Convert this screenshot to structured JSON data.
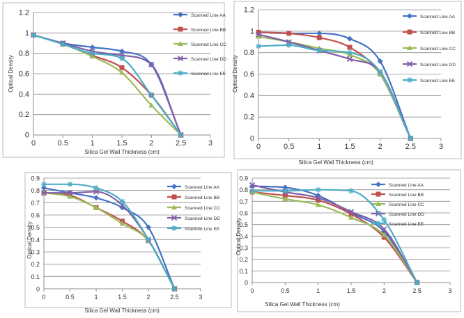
{
  "chart_data": [
    {
      "type": "line",
      "xlabel": "Silica Gel Wall Thickness (cm)",
      "ylabel": "Optical Density",
      "xlim": [
        0,
        3
      ],
      "ylim": [
        0,
        1.2
      ],
      "xticks": [
        "0",
        "0.5",
        "1",
        "1.5",
        "2",
        "2.5",
        "3"
      ],
      "yticks": [
        "0",
        "0.2",
        "0.4",
        "0.6",
        "0.8",
        "1",
        "1.2"
      ],
      "x": [
        0,
        0.5,
        1,
        1.5,
        2,
        2.5
      ],
      "grid": true,
      "legend": "right",
      "series": [
        {
          "name": "Scanned Line AA",
          "color": "#4472C4",
          "marker": "diamond",
          "values": [
            0.98,
            0.9,
            0.86,
            0.82,
            0.69,
            0.0
          ]
        },
        {
          "name": "Scanned Line BB",
          "color": "#C0504D",
          "marker": "square",
          "values": [
            0.98,
            0.89,
            0.78,
            0.66,
            0.39,
            0.0
          ]
        },
        {
          "name": "Scanned Line CC",
          "color": "#9BBB59",
          "marker": "triangle",
          "values": [
            0.98,
            0.89,
            0.77,
            0.61,
            0.29,
            0.0
          ]
        },
        {
          "name": "Scanned Line DD",
          "color": "#7F5FA8",
          "marker": "x",
          "values": [
            0.98,
            0.9,
            0.82,
            0.78,
            0.69,
            0.0
          ]
        },
        {
          "name": "Scanned Line EE",
          "color": "#4BACC6",
          "marker": "asterisk",
          "values": [
            0.98,
            0.89,
            0.8,
            0.75,
            0.39,
            0.0
          ]
        }
      ]
    },
    {
      "type": "line",
      "xlabel": "Silica Gel Wall Thickness (cm)",
      "ylabel": "Optical Density",
      "xlim": [
        0,
        3
      ],
      "ylim": [
        0,
        1.2
      ],
      "xticks": [
        "0",
        "0.5",
        "1",
        "1.5",
        "2",
        "2.5",
        "3"
      ],
      "yticks": [
        "0",
        "0.2",
        "0.4",
        "0.6",
        "0.8",
        "1",
        "1.2"
      ],
      "x": [
        0,
        0.5,
        1,
        1.5,
        2,
        2.5
      ],
      "grid": true,
      "legend": "right",
      "series": [
        {
          "name": "Scanned Line AA",
          "color": "#4472C4",
          "marker": "diamond",
          "values": [
            0.99,
            0.98,
            0.98,
            0.93,
            0.72,
            0.0
          ]
        },
        {
          "name": "Scanned Line BB",
          "color": "#C0504D",
          "marker": "square",
          "values": [
            0.99,
            0.98,
            0.94,
            0.85,
            0.6,
            0.0
          ]
        },
        {
          "name": "Scanned Line CC",
          "color": "#9BBB59",
          "marker": "triangle",
          "values": [
            0.95,
            0.9,
            0.84,
            0.78,
            0.6,
            0.0
          ]
        },
        {
          "name": "Scanned Line DD",
          "color": "#7F5FA8",
          "marker": "x",
          "values": [
            0.97,
            0.9,
            0.82,
            0.74,
            0.62,
            0.0
          ]
        },
        {
          "name": "Scanned Line EE",
          "color": "#4BACC6",
          "marker": "asterisk",
          "values": [
            0.86,
            0.87,
            0.82,
            0.8,
            0.62,
            0.0
          ]
        }
      ]
    },
    {
      "type": "line",
      "xlabel": "Silica Gel Wall Thickness (cm)",
      "ylabel": "Optical Density",
      "xlim": [
        0,
        3
      ],
      "ylim": [
        0,
        0.9
      ],
      "xticks": [
        "0",
        "0.5",
        "1",
        "1.5",
        "2",
        "2.5",
        "3"
      ],
      "yticks": [
        "0",
        "0.1",
        "0.2",
        "0.3",
        "0.4",
        "0.5",
        "0.6",
        "0.7",
        "0.8",
        "0.9"
      ],
      "x": [
        0,
        0.5,
        1,
        1.5,
        2,
        2.5
      ],
      "grid": true,
      "legend": "right",
      "series": [
        {
          "name": "Scanned Line AA",
          "color": "#4472C4",
          "marker": "diamond",
          "values": [
            0.82,
            0.78,
            0.74,
            0.66,
            0.5,
            0.0
          ]
        },
        {
          "name": "Scanned Line BB",
          "color": "#C0504D",
          "marker": "square",
          "values": [
            0.78,
            0.76,
            0.66,
            0.55,
            0.39,
            0.0
          ]
        },
        {
          "name": "Scanned Line CC",
          "color": "#9BBB59",
          "marker": "triangle",
          "values": [
            0.78,
            0.75,
            0.66,
            0.53,
            0.39,
            0.0
          ]
        },
        {
          "name": "Scanned Line DD",
          "color": "#7F5FA8",
          "marker": "x",
          "values": [
            0.78,
            0.78,
            0.79,
            0.68,
            0.4,
            0.0
          ]
        },
        {
          "name": "Scanned Line EE",
          "color": "#4BACC6",
          "marker": "asterisk",
          "values": [
            0.85,
            0.85,
            0.82,
            0.71,
            0.4,
            0.0
          ]
        }
      ]
    },
    {
      "type": "line",
      "xlabel": "Silica Gel Wall Thickness (cm)",
      "ylabel": "Optical Density",
      "xlim": [
        0,
        3
      ],
      "ylim": [
        0,
        0.9
      ],
      "xticks": [
        "0",
        "0.5",
        "1",
        "1.5",
        "2",
        "2.5",
        "3"
      ],
      "yticks": [
        "0",
        "0.1",
        "0.2",
        "0.3",
        "0.4",
        "0.5",
        "0.6",
        "0.7",
        "0.8",
        "0.9"
      ],
      "x": [
        0,
        0.5,
        1,
        1.5,
        2,
        2.5
      ],
      "grid": true,
      "legend": "right",
      "series": [
        {
          "name": "Scanned Line AA",
          "color": "#4472C4",
          "marker": "diamond",
          "values": [
            0.83,
            0.82,
            0.75,
            0.6,
            0.44,
            0.0
          ]
        },
        {
          "name": "Scanned Line BB",
          "color": "#C0504D",
          "marker": "square",
          "values": [
            0.78,
            0.75,
            0.71,
            0.59,
            0.39,
            0.0
          ]
        },
        {
          "name": "Scanned Line CC",
          "color": "#9BBB59",
          "marker": "triangle",
          "values": [
            0.78,
            0.72,
            0.67,
            0.56,
            0.41,
            0.0
          ]
        },
        {
          "name": "Scanned Line DD",
          "color": "#7F5FA8",
          "marker": "x",
          "values": [
            0.84,
            0.78,
            0.73,
            0.61,
            0.46,
            0.0
          ]
        },
        {
          "name": "Scanned Line EE",
          "color": "#4BACC6",
          "marker": "asterisk",
          "values": [
            0.79,
            0.79,
            0.8,
            0.79,
            0.54,
            0.0
          ]
        }
      ]
    }
  ]
}
